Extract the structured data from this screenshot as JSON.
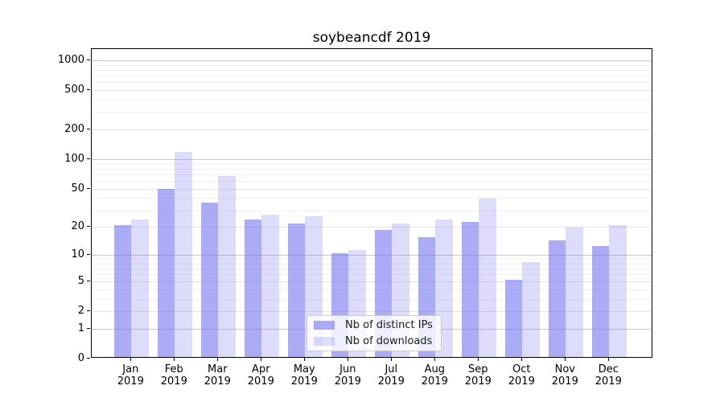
{
  "chart_data": {
    "type": "bar",
    "title": "soybeancdf 2019",
    "x_tick_months": [
      "Jan",
      "Feb",
      "Mar",
      "Apr",
      "May",
      "Jun",
      "Jul",
      "Aug",
      "Sep",
      "Oct",
      "Nov",
      "Dec"
    ],
    "x_tick_year": "2019",
    "y_ticks": [
      0,
      1,
      2,
      5,
      10,
      20,
      50,
      100,
      200,
      500,
      1000
    ],
    "y_minor_ticks": [
      3,
      4,
      6,
      7,
      8,
      9,
      30,
      40,
      60,
      70,
      80,
      90,
      300,
      400,
      600,
      700,
      800,
      900
    ],
    "y_scale": "log1p",
    "ylim": [
      0,
      1300
    ],
    "grid": true,
    "legend_position": "lower center",
    "series": [
      {
        "name": "Nb of distinct IPs",
        "color": "rgba(102,102,238,0.55)",
        "values": [
          20,
          48,
          35,
          23,
          21,
          10,
          18,
          15,
          22,
          5,
          14,
          12
        ]
      },
      {
        "name": "Nb of downloads",
        "color": "rgba(102,102,238,0.22)",
        "values": [
          23,
          115,
          65,
          26,
          25,
          11,
          21,
          23,
          38,
          8,
          19,
          20
        ]
      }
    ]
  }
}
